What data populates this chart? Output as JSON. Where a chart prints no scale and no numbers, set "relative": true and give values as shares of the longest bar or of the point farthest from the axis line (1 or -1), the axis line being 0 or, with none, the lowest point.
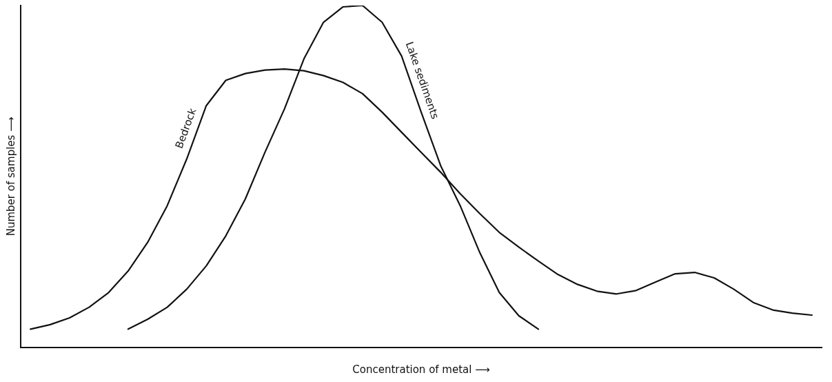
{
  "chart_data": {
    "type": "line",
    "relative": true,
    "xlabel": "Concentration of metal ⟶",
    "ylabel": "Number of samples ⟶",
    "categories": [
      null,
      null,
      null,
      null,
      null,
      null,
      null,
      null,
      null,
      null,
      null,
      null,
      null,
      null,
      null,
      null,
      null,
      null,
      null,
      null,
      null,
      null,
      null,
      null,
      null,
      null,
      null,
      null,
      null,
      null,
      null,
      null,
      null,
      null,
      null,
      null,
      null,
      null,
      null,
      null,
      null
    ],
    "series": [
      {
        "name": "Bedrock",
        "color": "#111111",
        "values": [
          0.053,
          0.066,
          0.086,
          0.117,
          0.16,
          0.223,
          0.307,
          0.414,
          0.551,
          0.707,
          0.781,
          0.801,
          0.811,
          0.814,
          0.809,
          0.795,
          0.775,
          0.742,
          0.688,
          0.629,
          0.57,
          0.512,
          0.449,
          0.391,
          0.336,
          0.293,
          0.252,
          0.213,
          0.184,
          0.164,
          0.156,
          0.166,
          0.191,
          0.215,
          0.219,
          0.203,
          0.17,
          0.131,
          0.109,
          0.1,
          0.094
        ]
      },
      {
        "name": "Lake sediments",
        "color": "#111111",
        "values": [
          null,
          null,
          null,
          null,
          null,
          0.053,
          0.082,
          0.117,
          0.17,
          0.238,
          0.326,
          0.434,
          0.57,
          0.697,
          0.844,
          0.951,
          0.996,
          1,
          0.951,
          0.852,
          0.688,
          0.531,
          0.414,
          0.277,
          0.16,
          0.092,
          0.053,
          null,
          null,
          null,
          null,
          null,
          null,
          null,
          null,
          null,
          null,
          null,
          null,
          null,
          null
        ]
      }
    ],
    "marker": "none",
    "line_style": "solid",
    "grid": false,
    "legend": false
  }
}
